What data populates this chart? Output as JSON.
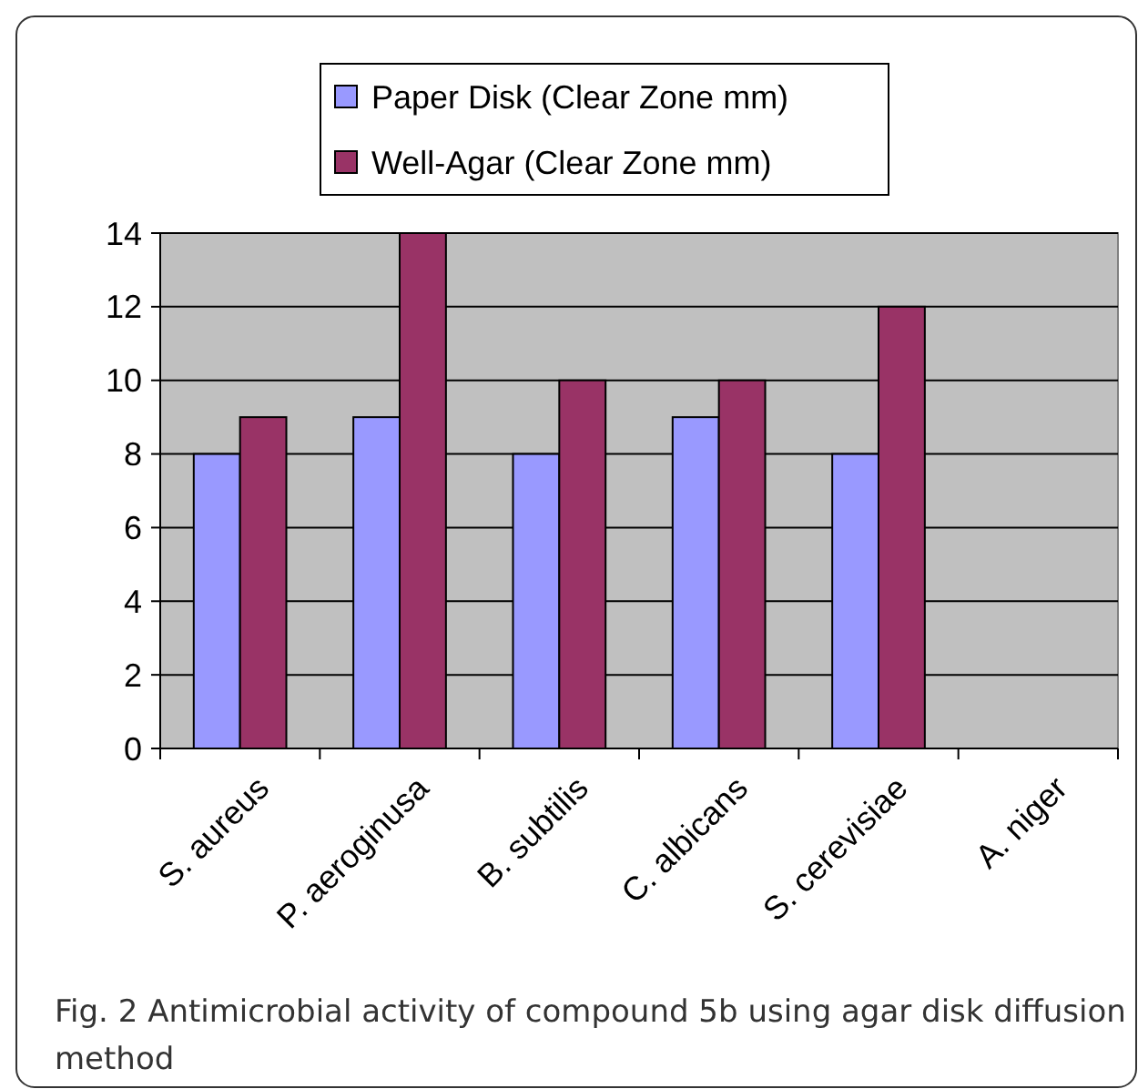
{
  "chart_data": {
    "type": "bar",
    "categories": [
      "S. aureus",
      "P. aeroginusa",
      "B. subtilis",
      "C. albicans",
      "S. cerevisiae",
      "A. niger"
    ],
    "series": [
      {
        "name": "Paper Disk (Clear Zone mm)",
        "color": "#9999ff",
        "values": [
          8,
          9,
          8,
          9,
          8,
          0
        ]
      },
      {
        "name": "Well-Agar (Clear Zone mm)",
        "color": "#993366",
        "values": [
          9,
          14,
          10,
          10,
          12,
          0
        ]
      }
    ],
    "ylim": [
      0,
      14
    ],
    "yticks": [
      0,
      2,
      4,
      6,
      8,
      10,
      12,
      14
    ],
    "grid": "y",
    "legend": "top",
    "annotations": [
      "Fig. 2 Antimicrobial activity of compound 5b using agar disk diffusion method"
    ]
  }
}
